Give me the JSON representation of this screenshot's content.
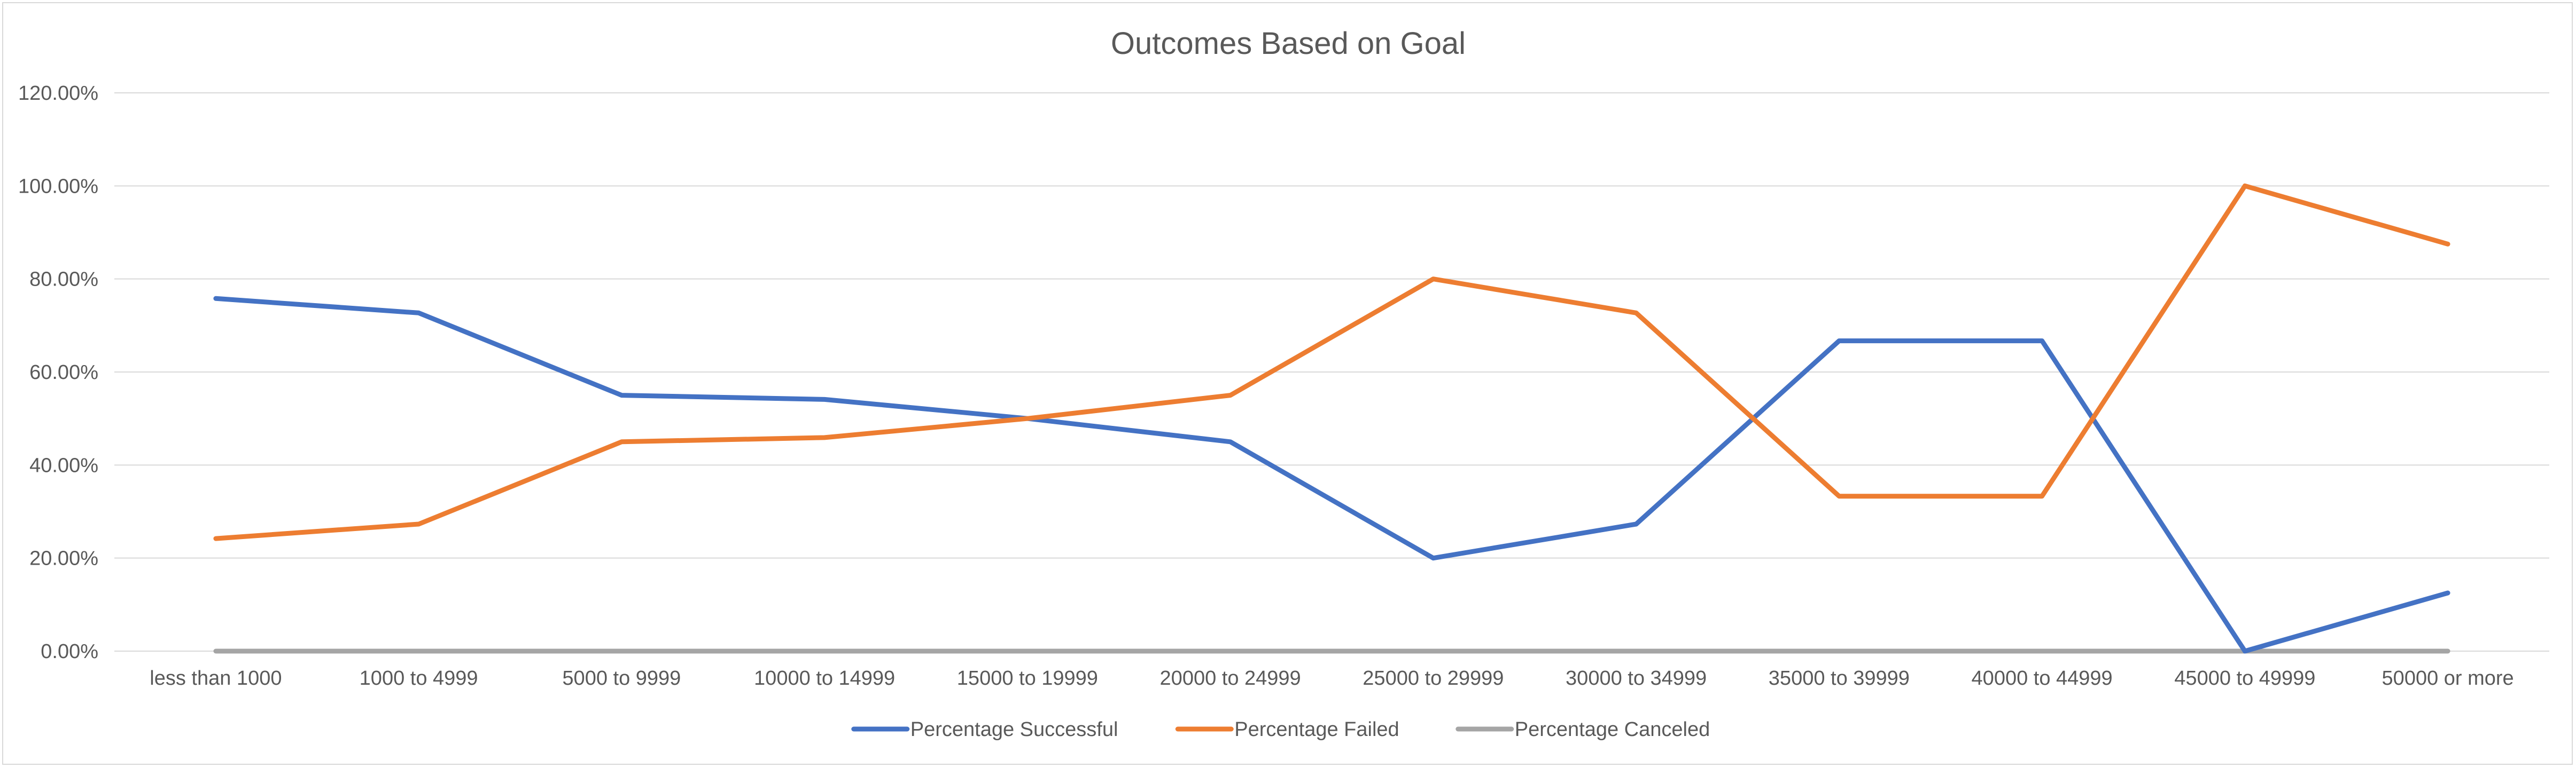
{
  "chart_data": {
    "type": "line",
    "title": "Outcomes Based on Goal",
    "xlabel": "",
    "ylabel": "",
    "categories": [
      "less than 1000",
      "1000 to 4999",
      "5000 to 9999",
      "10000 to 14999",
      "15000 to 19999",
      "20000 to 24999",
      "25000 to 29999",
      "30000 to 34999",
      "35000 to 39999",
      "40000 to 44999",
      "45000 to 49999",
      "50000 or more"
    ],
    "y_ticks": [
      "0.00%",
      "20.00%",
      "40.00%",
      "60.00%",
      "80.00%",
      "100.00%",
      "120.00%"
    ],
    "ylim": [
      0,
      120
    ],
    "y_unit": "percent",
    "grid": "horizontal",
    "legend_position": "bottom",
    "series": [
      {
        "name": "Percentage Successful",
        "color": "#4472c4",
        "values": [
          75.8,
          72.7,
          55.0,
          54.1,
          50.0,
          45.0,
          20.0,
          27.3,
          66.7,
          66.7,
          0.0,
          12.5
        ]
      },
      {
        "name": "Percentage Failed",
        "color": "#ed7d31",
        "values": [
          24.2,
          27.3,
          45.0,
          45.9,
          50.0,
          55.0,
          80.0,
          72.7,
          33.3,
          33.3,
          100.0,
          87.5
        ]
      },
      {
        "name": "Percentage Canceled",
        "color": "#a5a5a5",
        "values": [
          0,
          0,
          0,
          0,
          0,
          0,
          0,
          0,
          0,
          0,
          0,
          0
        ]
      }
    ]
  }
}
